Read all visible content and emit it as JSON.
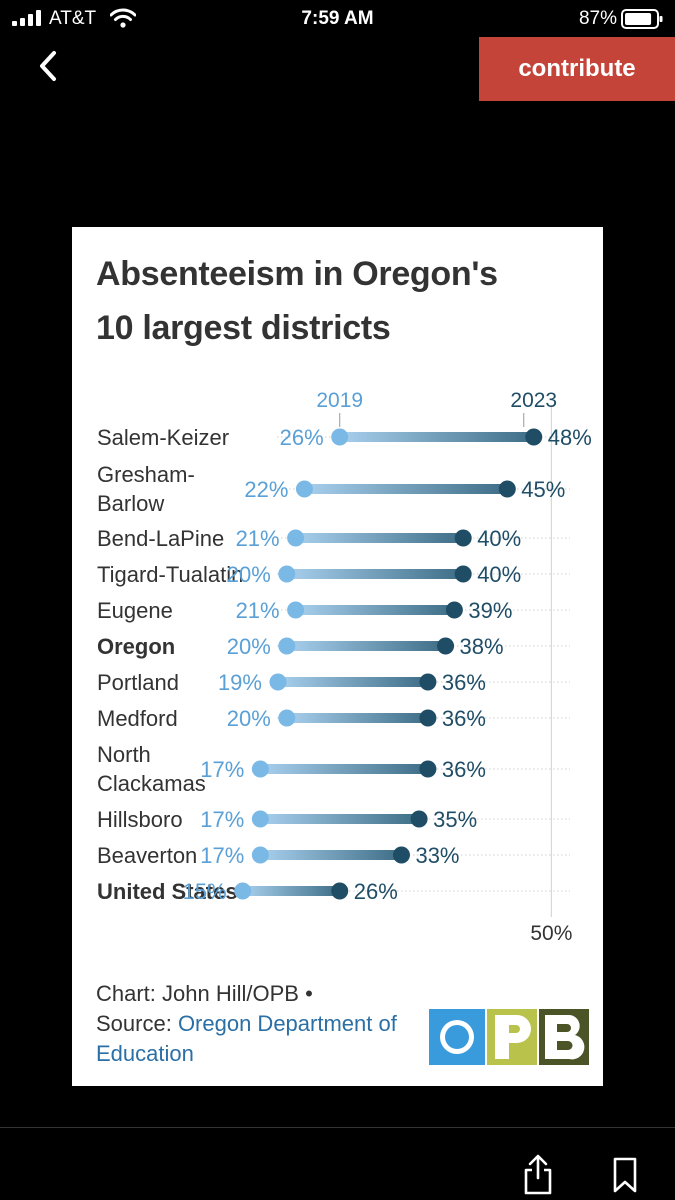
{
  "status_bar": {
    "carrier": "AT&T",
    "time": "7:59 AM",
    "battery": "87%",
    "battery_level": 0.87
  },
  "nav": {
    "contribute_label": "contribute"
  },
  "card": {
    "title_line1": "Absenteeism in Oregon's",
    "title_line2": "10 largest districts",
    "credit_line1": "Chart: John Hill/OPB •",
    "credit_source_prefix": "Source: ",
    "credit_source_link": "Oregon Department of Education",
    "logo_text": "OPB"
  },
  "colors": {
    "c2019": "#7ab8e6",
    "c2023": "#1f4d66",
    "label": "#333333",
    "light_label": "#5aa0d6",
    "grid": "#cfcfcf"
  },
  "chart_data": {
    "type": "dumbbell",
    "title": "Absenteeism in Oregon's 10 largest districts",
    "series_labels": [
      "2019",
      "2023"
    ],
    "axis_tick_label": "50%",
    "axis_tick_value": 50,
    "rows": [
      {
        "name": "Salem-Keizer",
        "v2019": 26,
        "v2023": 48,
        "bold": false
      },
      {
        "name": "Gresham-Barlow",
        "lines": [
          "Gresham-",
          "Barlow"
        ],
        "v2019": 22,
        "v2023": 45,
        "bold": false
      },
      {
        "name": "Bend-LaPine",
        "v2019": 21,
        "v2023": 40,
        "bold": false
      },
      {
        "name": "Tigard-Tualatin",
        "v2019": 20,
        "v2023": 40,
        "bold": false
      },
      {
        "name": "Eugene",
        "v2019": 21,
        "v2023": 39,
        "bold": false
      },
      {
        "name": "Oregon",
        "v2019": 20,
        "v2023": 38,
        "bold": true
      },
      {
        "name": "Portland",
        "v2019": 19,
        "v2023": 36,
        "bold": false
      },
      {
        "name": "Medford",
        "v2019": 20,
        "v2023": 36,
        "bold": false
      },
      {
        "name": "North Clackamas",
        "lines": [
          "North",
          "Clackamas"
        ],
        "v2019": 17,
        "v2023": 36,
        "bold": false
      },
      {
        "name": "Hillsboro",
        "v2019": 17,
        "v2023": 35,
        "bold": false
      },
      {
        "name": "Beaverton",
        "v2019": 17,
        "v2023": 33,
        "bold": false
      },
      {
        "name": "United States",
        "v2019": 15,
        "v2023": 26,
        "bold": true
      }
    ]
  }
}
